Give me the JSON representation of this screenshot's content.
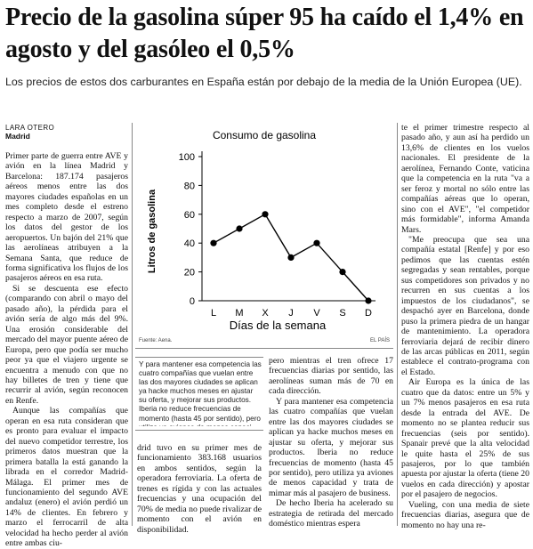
{
  "headline": "Precio de la gasolina súper 95 ha caído el 1,4% en agosto y del gasóleo el 0,5%",
  "subhead": "Los precios de estos dos carburantes en España están por debajo de la media de la Unión Europea (UE).",
  "byline": {
    "author": "LARA OTERO",
    "place": "Madrid"
  },
  "col1": [
    "Primer parte de guerra entre AVE y avión en la línea Madrid y Barcelona: 187.174 pasajeros aéreos menos entre las dos mayores ciudades españolas en un mes completo desde el estreno respecto a marzo de 2007, según los datos del gestor de los aeropuertos. Un bajón del 21% que las aerolíneas atribuyen a la Semana Santa, que reduce de forma significativa los flujos de los pasajeros aéreos en esa ruta.",
    "Si se descuenta ese efecto (comparando con abril o mayo del pasado año), la pérdida para el avión sería de algo más del 9%. Una erosión considerable del mercado del mayor puente aéreo de Europa, pero que podía ser mucho peor ya que el viajero urgente se encuentra a menudo con que no hay billetes de tren y tiene que recurrir al avión, según reconocen en Renfe.",
    "Aunque las compañías que operan en esa ruta consideran que es pronto para evaluar el impacto del nuevo competidor terrestre, los primeros datos muestran que la primera batalla la está ganando la librada en el corredor Madrid-Málaga. El primer mes de funcionamiento del segundo AVE andaluz (enero) el avión perdió un 14% de clientes. En febrero y marzo el ferrocarril de alta velocidad ha hecho perder al avión entre ambas ciu-"
  ],
  "chart_data": {
    "type": "line",
    "title": "Consumo de gasolina",
    "xlabel": "Días de la semana",
    "ylabel": "Litros de gasolina",
    "categories": [
      "L",
      "M",
      "X",
      "J",
      "V",
      "S",
      "D"
    ],
    "values": [
      40,
      50,
      60,
      30,
      40,
      20,
      0
    ],
    "yticks": [
      "0",
      "20",
      "40",
      "60",
      "80",
      "100"
    ],
    "ylim": [
      0,
      100
    ],
    "grid": false,
    "source": "Fuente: Aena.",
    "credit": "EL PAÍS"
  },
  "pull_quote": "Y para mantener esa competencia las cuatro compañías que vuelan entre las dos mayores ciudades se aplican ya hacke muchos meses en ajustar su oferta, y mejorar sus productos. Iberia no reduce frecuencias de momento (hasta 45 por sentido), pero utiliza ya aviones de menos capaci",
  "col2_bottom": "drid tuvo en su primer mes de funcionamiento 383.168 usuarios en ambos sentidos, según la operadora ferroviaria. La oferta de trenes es rígida y con las actuales frecuencias y una ocupación del 70% de media no puede rivalizar de momento con el avión en disponibilidad.",
  "col3_top": "pero mientras el tren ofrece 17 frecuencias diarias por sentido, las aerolíneas suman más de 70 en cada dirección.",
  "col3_main": [
    "Y para mantener esa competencia las cuatro compañías que vuelan entre las dos mayores ciudades se aplican ya hacke muchos meses en ajustar su oferta, y mejorar sus productos. Iberia no reduce frecuencias de momento (hasta 45 por sentido), pero utiliza ya aviones de menos capacidad y trata de mimar más al pasajero de business.",
    "De hecho Iberia ha acelerado su estrategia de retirada del mercado doméstico mientras espera"
  ],
  "col4": [
    "te el primer trimestre respecto al pasado año, y aun así ha perdido un 13,6% de clientes en los vuelos nacionales. El presidente de la aerolínea, Fernando Conte, vaticina que la competencia en la ruta \"va a ser feroz y mortal no sólo entre las compañías aéreas que lo operan, sino con el AVE\", \"el competidor más formidable\", informa Amanda Mars.",
    "\"Me preocupa que sea una compañía estatal [Renfe] y por eso pedimos que las cuentas estén segregadas y sean rentables, porque sus competidores son privados y no recurren en sus cuentas a los impuestos de los ciudadanos\", se despachó ayer en Barcelona, donde puso la primera piedra de un hangar de mantenimiento. La operadora ferroviaria dejará de recibir dinero de las arcas públicas en 2011, según establece el contrato-programa con el Estado.",
    "Air Europa es la única de las cuatro que da datos: entre un 5% y un 7% menos pasajeros en esa ruta desde la entrada del AVE. De momento no se plantea reducir sus frecuencias (seis por sentido). Spanair prevé que la alta velocidad le quite hasta el 25% de sus pasajeros, por lo que también apuesta por ajustar la oferta (tiene 20 vuelos en cada dirección) y apostar por el pasajero de negocios.",
    "Vueling, con una media de siete frecuencias diarias, asegura que de momento no hay una re-"
  ]
}
